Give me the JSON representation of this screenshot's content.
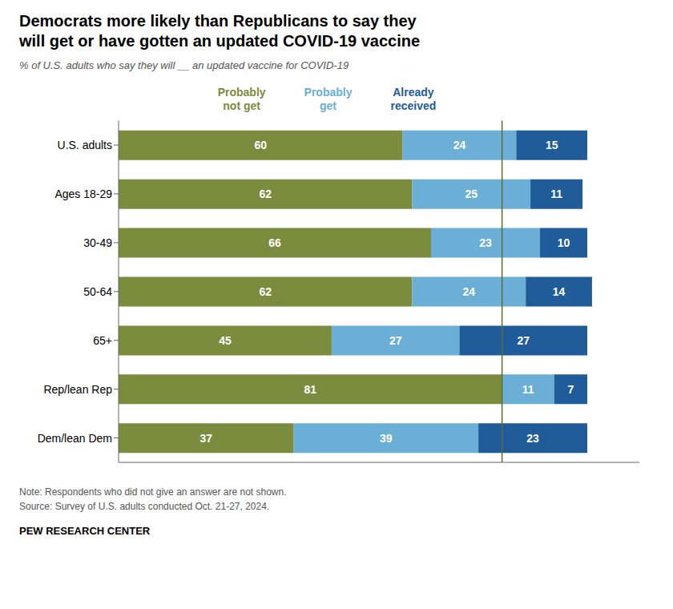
{
  "chart_data": {
    "type": "bar",
    "orientation": "horizontal",
    "stacked": true,
    "data_labels": true,
    "grid": false,
    "tick_labels": "y",
    "title": "Democrats more likely than Republicans to say they\nwill get or have gotten an updated COVID-19 vaccine",
    "subtitle": "% of U.S. adults who say they will __ an updated vaccine for COVID-19",
    "categories": [
      "U.S. adults",
      "Ages 18-29",
      "30-49",
      "50-64",
      "65+",
      "Rep/lean Rep",
      "Dem/lean Dem"
    ],
    "series": [
      {
        "name": "Probably\nnot get",
        "color": "#7b8c3e",
        "values": [
          60,
          62,
          66,
          62,
          45,
          81,
          37
        ]
      },
      {
        "name": "Probably\nget",
        "color": "#6baed6",
        "values": [
          24,
          25,
          23,
          24,
          27,
          11,
          39
        ]
      },
      {
        "name": "Already\nreceived",
        "color": "#1f5c99",
        "values": [
          15,
          11,
          10,
          14,
          27,
          7,
          23
        ]
      }
    ],
    "xlim": [
      0,
      110
    ],
    "reference_line": {
      "x": 81,
      "color": "#5a6e2a"
    },
    "notes": [
      "Note: Respondents who did not give an answer are not shown.",
      "Source: Survey of U.S. adults conducted Oct. 21-27, 2024."
    ],
    "footer": "PEW RESEARCH CENTER"
  }
}
